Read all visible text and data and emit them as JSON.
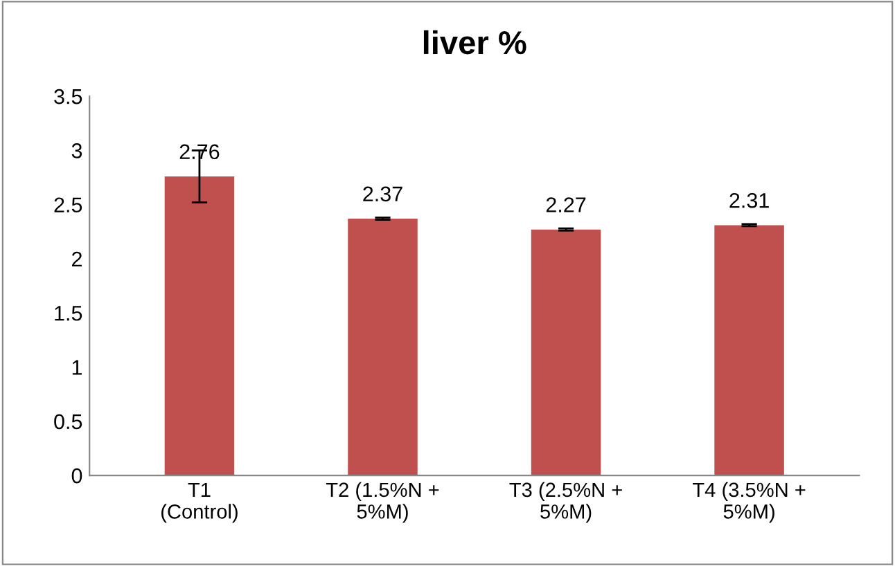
{
  "chart_data": {
    "type": "bar",
    "title": "liver %",
    "categories": [
      "T1\n(Control)",
      "T2 (1.5%N +\n5%M)",
      "T3 (2.5%N +\n5%M)",
      "T4 (3.5%N +\n5%M)"
    ],
    "values": [
      2.76,
      2.37,
      2.27,
      2.31
    ],
    "errors": [
      0.24,
      0.01,
      0.01,
      0.01
    ],
    "color": "#c0504d",
    "data_labels": true,
    "ylim": [
      0,
      3.5
    ],
    "yticks": [
      0,
      0.5,
      1,
      1.5,
      2,
      2.5,
      3,
      3.5
    ],
    "grid": false,
    "legend": false
  }
}
